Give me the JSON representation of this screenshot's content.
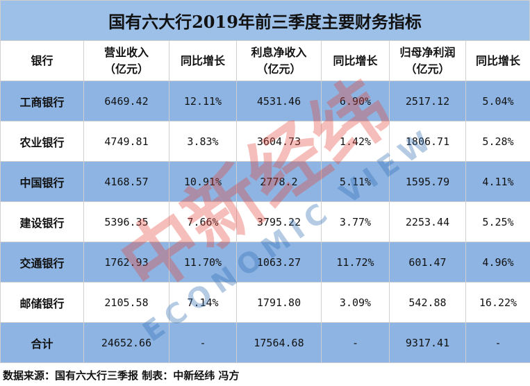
{
  "title": "国有六大行2019年前三季度主要财务指标",
  "table": {
    "header": [
      "银行",
      "营业收入\n（亿元）",
      "同比增长",
      "利息净收入\n（亿元）",
      "同比增长",
      "归母净利润\n（亿元）",
      "同比增长"
    ],
    "rows": [
      [
        "工商银行",
        "6469.42",
        "12.11%",
        "4531.46",
        "6.90%",
        "2517.12",
        "5.04%"
      ],
      [
        "农业银行",
        "4749.81",
        "3.83%",
        "3604.73",
        "1.42%",
        "1806.71",
        "5.28%"
      ],
      [
        "中国银行",
        "4168.57",
        "10.91%",
        "2778.2",
        "5.11%",
        "1595.79",
        "4.11%"
      ],
      [
        "建设银行",
        "5396.35",
        "7.66%",
        "3795.22",
        "3.77%",
        "2253.44",
        "5.25%"
      ],
      [
        "交通银行",
        "1762.93",
        "11.70%",
        "1063.27",
        "11.72%",
        "601.47",
        "4.96%"
      ],
      [
        "邮储银行",
        "2105.58",
        "7.14%",
        "1791.80",
        "3.09%",
        "542.88",
        "16.22%"
      ],
      [
        "合计",
        "24652.66",
        "-",
        "17564.68",
        "-",
        "9317.41",
        "-"
      ]
    ]
  },
  "footer": "数据来源：国有六大行三季报  制表：中新经纬 冯方",
  "watermark": {
    "text": "中新经纬",
    "subtext": "ECONOMIC VIEW"
  }
}
